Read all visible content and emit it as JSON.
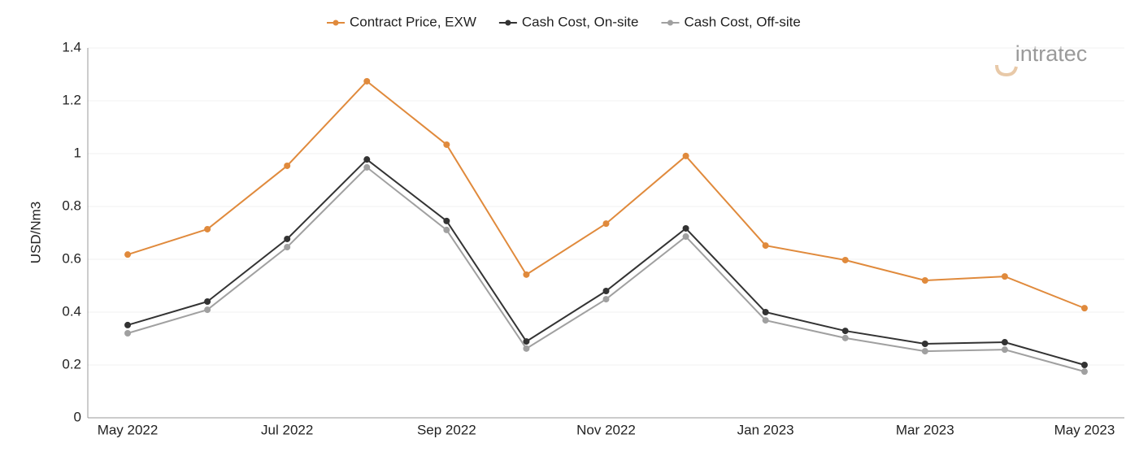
{
  "logo": "intratec",
  "chart_data": {
    "type": "line",
    "y_label": "USD/Nm3",
    "categories": [
      "May 2022",
      null,
      "Jul 2022",
      null,
      "Sep 2022",
      null,
      "Nov 2022",
      null,
      "Jan 2023",
      null,
      "Mar 2023",
      null,
      "May 2023"
    ],
    "series": [
      {
        "name": "Contract Price, EXW",
        "color": "#e08a3c",
        "values": [
          0.618,
          0.714,
          0.954,
          1.274,
          1.034,
          0.542,
          0.735,
          0.991,
          0.652,
          0.597,
          0.52,
          0.535,
          0.415
        ]
      },
      {
        "name": "Cash Cost, On-site",
        "color": "#333333",
        "values": [
          0.351,
          0.44,
          0.677,
          0.978,
          0.745,
          0.289,
          0.48,
          0.717,
          0.4,
          0.329,
          0.28,
          0.286,
          0.2
        ]
      },
      {
        "name": "Cash Cost, Off-site",
        "color": "#a0a0a0",
        "values": [
          0.32,
          0.409,
          0.646,
          0.948,
          0.711,
          0.262,
          0.449,
          0.686,
          0.369,
          0.302,
          0.252,
          0.258,
          0.175
        ]
      }
    ],
    "ylim": [
      0,
      1.4
    ],
    "yticks": [
      0,
      0.2,
      0.4,
      0.6,
      0.8,
      1,
      1.2,
      1.4
    ],
    "grid": true
  }
}
